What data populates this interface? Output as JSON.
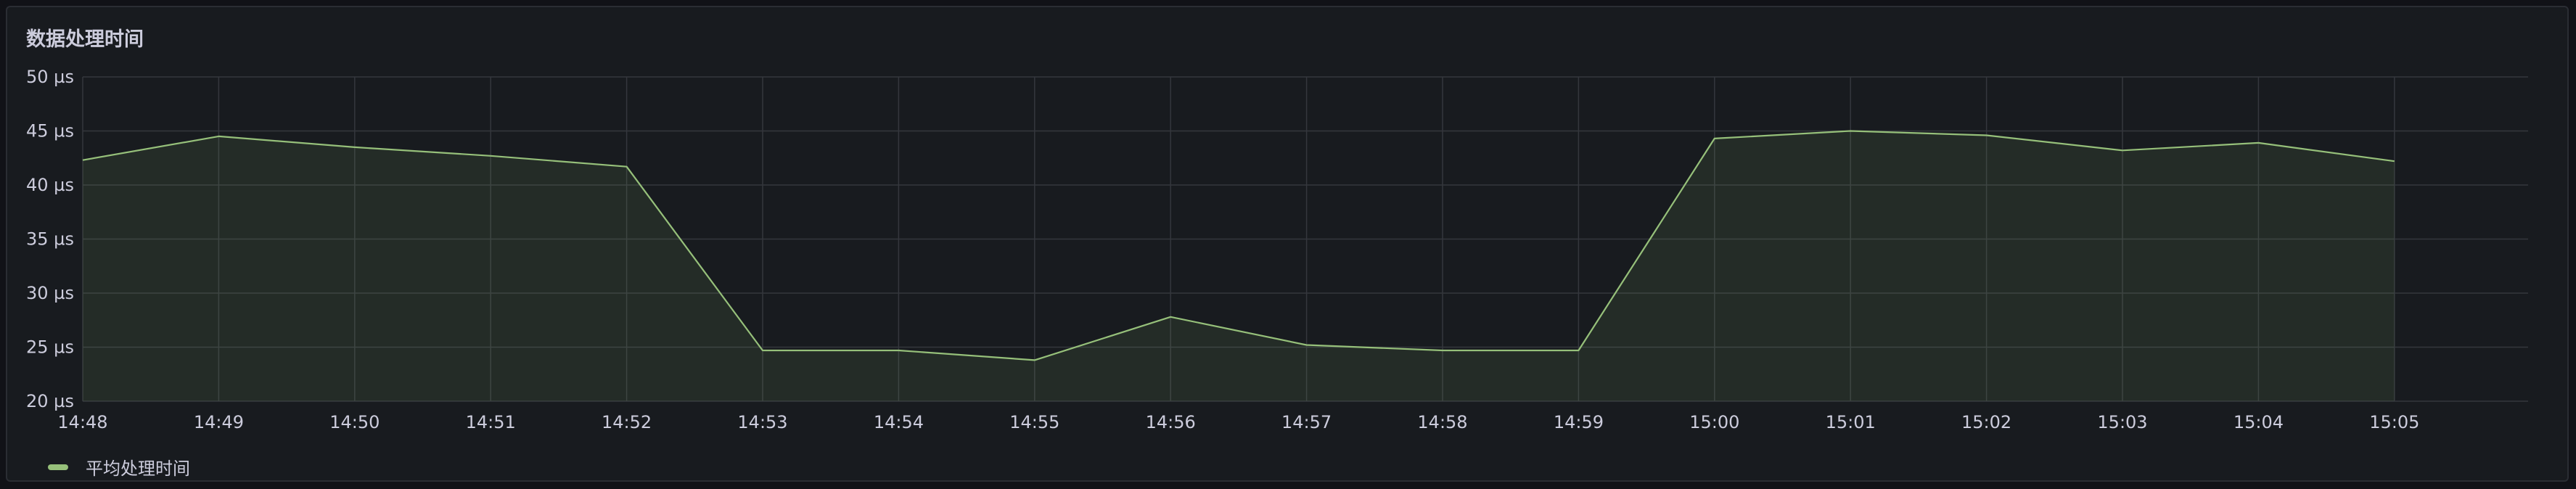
{
  "panel": {
    "title": "数据处理时间"
  },
  "chart_data": {
    "type": "area",
    "title": "数据处理时间",
    "xlabel": "",
    "ylabel": "",
    "y_unit": "µs",
    "ylim": [
      20,
      50
    ],
    "yticks": [
      50,
      45,
      40,
      35,
      30,
      25,
      20
    ],
    "ytick_labels": [
      "50 µs",
      "45 µs",
      "40 µs",
      "35 µs",
      "30 µs",
      "25 µs",
      "20 µs"
    ],
    "categories": [
      "14:48",
      "14:49",
      "14:50",
      "14:51",
      "14:52",
      "14:53",
      "14:54",
      "14:55",
      "14:56",
      "14:57",
      "14:58",
      "14:59",
      "15:00",
      "15:01",
      "15:02",
      "15:03",
      "15:04",
      "15:05"
    ],
    "series": [
      {
        "name": "平均处理时间",
        "color": "#96c07a",
        "values": [
          42.3,
          44.5,
          43.5,
          42.7,
          41.7,
          24.7,
          24.7,
          23.8,
          27.8,
          25.2,
          24.7,
          24.7,
          44.3,
          45.0,
          44.6,
          43.2,
          43.9,
          42.2
        ]
      }
    ],
    "grid": true,
    "legend_position": "bottom-left"
  },
  "theme": {
    "background": "#181b1f",
    "grid_color": "#34373d",
    "text_color": "#ccccdc",
    "line_color": "#96c07a",
    "fill_color": "#96c07a"
  }
}
